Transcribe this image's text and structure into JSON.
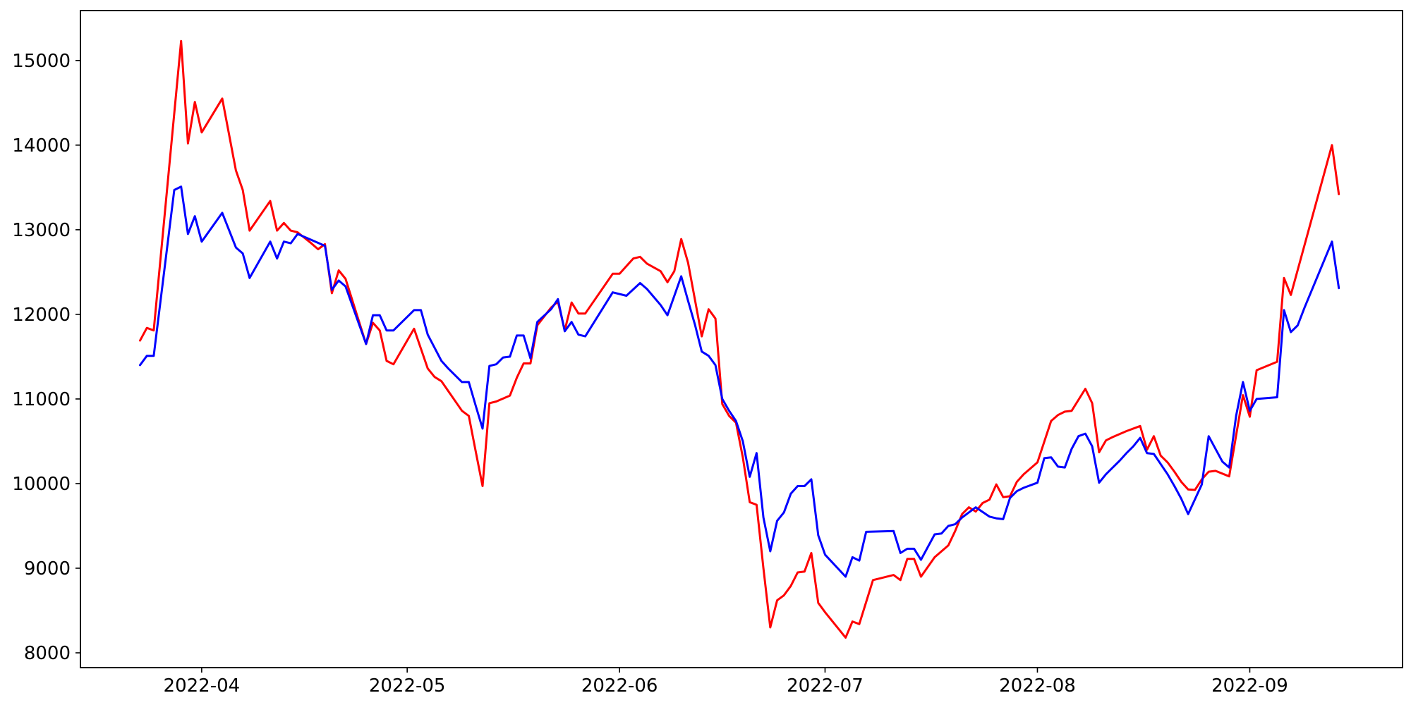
{
  "figure": {
    "background": "#ffffff",
    "description": "Two-series daily line chart, red and blue, March-September 2022"
  },
  "chart_data": {
    "type": "line",
    "title": "",
    "xlabel": "",
    "ylabel": "",
    "grid": false,
    "legend": "none",
    "axis": {
      "day_zero": "2022-03-23",
      "xlim_days": [
        -8.7,
        184.3
      ],
      "ylim": [
        7825,
        15590
      ],
      "x_ticks": [
        {
          "day": 9,
          "label": "2022-04"
        },
        {
          "day": 39,
          "label": "2022-05"
        },
        {
          "day": 70,
          "label": "2022-06"
        },
        {
          "day": 100,
          "label": "2022-07"
        },
        {
          "day": 131,
          "label": "2022-08"
        },
        {
          "day": 162,
          "label": "2022-09"
        }
      ],
      "y_ticks": [
        {
          "value": 8000,
          "label": "8000"
        },
        {
          "value": 9000,
          "label": "9000"
        },
        {
          "value": 10000,
          "label": "10000"
        },
        {
          "value": 11000,
          "label": "11000"
        },
        {
          "value": 12000,
          "label": "12000"
        },
        {
          "value": 13000,
          "label": "13000"
        },
        {
          "value": 14000,
          "label": "14000"
        },
        {
          "value": 15000,
          "label": "15000"
        }
      ]
    },
    "series": [
      {
        "name": "red-series",
        "color": "#ff0000",
        "line_width": 3,
        "points": [
          [
            0,
            11690
          ],
          [
            1,
            11840
          ],
          [
            2,
            11810
          ],
          [
            6,
            15230
          ],
          [
            7,
            14020
          ],
          [
            8,
            14510
          ],
          [
            9,
            14150
          ],
          [
            12,
            14550
          ],
          [
            14,
            13700
          ],
          [
            15,
            13470
          ],
          [
            16,
            12990
          ],
          [
            19,
            13340
          ],
          [
            20,
            12990
          ],
          [
            21,
            13080
          ],
          [
            22,
            12990
          ],
          [
            23,
            12970
          ],
          [
            25,
            12840
          ],
          [
            26,
            12770
          ],
          [
            27,
            12830
          ],
          [
            28,
            12250
          ],
          [
            29,
            12520
          ],
          [
            30,
            12420
          ],
          [
            33,
            11650
          ],
          [
            34,
            11900
          ],
          [
            35,
            11810
          ],
          [
            36,
            11450
          ],
          [
            37,
            11410
          ],
          [
            40,
            11830
          ],
          [
            42,
            11360
          ],
          [
            43,
            11260
          ],
          [
            44,
            11210
          ],
          [
            47,
            10860
          ],
          [
            48,
            10800
          ],
          [
            49,
            10380
          ],
          [
            50,
            9970
          ],
          [
            51,
            10950
          ],
          [
            52,
            10970
          ],
          [
            54,
            11040
          ],
          [
            55,
            11250
          ],
          [
            56,
            11420
          ],
          [
            57,
            11420
          ],
          [
            58,
            11870
          ],
          [
            60,
            12080
          ],
          [
            61,
            12150
          ],
          [
            62,
            11810
          ],
          [
            63,
            12140
          ],
          [
            64,
            12010
          ],
          [
            65,
            12010
          ],
          [
            69,
            12480
          ],
          [
            70,
            12480
          ],
          [
            72,
            12660
          ],
          [
            73,
            12680
          ],
          [
            74,
            12600
          ],
          [
            76,
            12510
          ],
          [
            77,
            12380
          ],
          [
            78,
            12510
          ],
          [
            79,
            12890
          ],
          [
            80,
            12610
          ],
          [
            82,
            11740
          ],
          [
            83,
            12060
          ],
          [
            84,
            11950
          ],
          [
            85,
            10940
          ],
          [
            86,
            10800
          ],
          [
            87,
            10720
          ],
          [
            88,
            10310
          ],
          [
            89,
            9780
          ],
          [
            90,
            9750
          ],
          [
            91,
            9000
          ],
          [
            92,
            8300
          ],
          [
            93,
            8620
          ],
          [
            94,
            8680
          ],
          [
            95,
            8790
          ],
          [
            96,
            8950
          ],
          [
            97,
            8960
          ],
          [
            98,
            9180
          ],
          [
            99,
            8590
          ],
          [
            100,
            8480
          ],
          [
            103,
            8180
          ],
          [
            104,
            8370
          ],
          [
            105,
            8340
          ],
          [
            106,
            8600
          ],
          [
            107,
            8860
          ],
          [
            108,
            8880
          ],
          [
            110,
            8920
          ],
          [
            111,
            8860
          ],
          [
            112,
            9110
          ],
          [
            113,
            9110
          ],
          [
            114,
            8900
          ],
          [
            116,
            9130
          ],
          [
            117,
            9200
          ],
          [
            118,
            9270
          ],
          [
            119,
            9440
          ],
          [
            120,
            9640
          ],
          [
            121,
            9720
          ],
          [
            122,
            9670
          ],
          [
            123,
            9770
          ],
          [
            124,
            9810
          ],
          [
            125,
            9990
          ],
          [
            126,
            9840
          ],
          [
            127,
            9850
          ],
          [
            128,
            10020
          ],
          [
            129,
            10110
          ],
          [
            131,
            10250
          ],
          [
            133,
            10740
          ],
          [
            134,
            10810
          ],
          [
            135,
            10850
          ],
          [
            136,
            10860
          ],
          [
            138,
            11120
          ],
          [
            139,
            10950
          ],
          [
            140,
            10370
          ],
          [
            141,
            10510
          ],
          [
            142,
            10550
          ],
          [
            144,
            10620
          ],
          [
            146,
            10680
          ],
          [
            147,
            10400
          ],
          [
            148,
            10560
          ],
          [
            149,
            10330
          ],
          [
            150,
            10250
          ],
          [
            151,
            10140
          ],
          [
            152,
            10020
          ],
          [
            153,
            9930
          ],
          [
            154,
            9925
          ],
          [
            155,
            10050
          ],
          [
            156,
            10140
          ],
          [
            157,
            10150
          ],
          [
            159,
            10085
          ],
          [
            161,
            11045
          ],
          [
            162,
            10790
          ],
          [
            163,
            11340
          ],
          [
            166,
            11440
          ],
          [
            167,
            12430
          ],
          [
            168,
            12230
          ],
          [
            174,
            14000
          ],
          [
            175,
            13420
          ]
        ]
      },
      {
        "name": "blue-series",
        "color": "#0000ff",
        "line_width": 3,
        "points": [
          [
            0,
            11400
          ],
          [
            1,
            11510
          ],
          [
            2,
            11510
          ],
          [
            5,
            13470
          ],
          [
            6,
            13510
          ],
          [
            7,
            12950
          ],
          [
            8,
            13160
          ],
          [
            9,
            12860
          ],
          [
            12,
            13200
          ],
          [
            14,
            12790
          ],
          [
            15,
            12720
          ],
          [
            16,
            12430
          ],
          [
            19,
            12860
          ],
          [
            20,
            12660
          ],
          [
            21,
            12860
          ],
          [
            22,
            12840
          ],
          [
            23,
            12950
          ],
          [
            25,
            12880
          ],
          [
            27,
            12810
          ],
          [
            28,
            12290
          ],
          [
            29,
            12400
          ],
          [
            30,
            12330
          ],
          [
            33,
            11650
          ],
          [
            34,
            11990
          ],
          [
            35,
            11990
          ],
          [
            36,
            11810
          ],
          [
            37,
            11810
          ],
          [
            40,
            12050
          ],
          [
            41,
            12050
          ],
          [
            42,
            11760
          ],
          [
            44,
            11450
          ],
          [
            45,
            11360
          ],
          [
            47,
            11200
          ],
          [
            48,
            11200
          ],
          [
            49,
            10920
          ],
          [
            50,
            10650
          ],
          [
            51,
            11390
          ],
          [
            52,
            11410
          ],
          [
            53,
            11490
          ],
          [
            54,
            11500
          ],
          [
            55,
            11750
          ],
          [
            56,
            11750
          ],
          [
            57,
            11480
          ],
          [
            58,
            11910
          ],
          [
            60,
            12060
          ],
          [
            61,
            12180
          ],
          [
            62,
            11800
          ],
          [
            63,
            11910
          ],
          [
            64,
            11760
          ],
          [
            65,
            11740
          ],
          [
            69,
            12260
          ],
          [
            71,
            12220
          ],
          [
            73,
            12370
          ],
          [
            74,
            12300
          ],
          [
            76,
            12110
          ],
          [
            77,
            11990
          ],
          [
            79,
            12450
          ],
          [
            80,
            12160
          ],
          [
            81,
            11880
          ],
          [
            82,
            11560
          ],
          [
            83,
            11510
          ],
          [
            84,
            11400
          ],
          [
            85,
            11000
          ],
          [
            86,
            10860
          ],
          [
            87,
            10740
          ],
          [
            88,
            10500
          ],
          [
            89,
            10080
          ],
          [
            90,
            10360
          ],
          [
            91,
            9600
          ],
          [
            92,
            9200
          ],
          [
            93,
            9560
          ],
          [
            94,
            9660
          ],
          [
            95,
            9880
          ],
          [
            96,
            9970
          ],
          [
            97,
            9970
          ],
          [
            98,
            10050
          ],
          [
            99,
            9390
          ],
          [
            100,
            9160
          ],
          [
            103,
            8900
          ],
          [
            104,
            9130
          ],
          [
            105,
            9090
          ],
          [
            106,
            9430
          ],
          [
            110,
            9440
          ],
          [
            111,
            9180
          ],
          [
            112,
            9230
          ],
          [
            113,
            9230
          ],
          [
            114,
            9100
          ],
          [
            116,
            9400
          ],
          [
            117,
            9410
          ],
          [
            118,
            9500
          ],
          [
            119,
            9520
          ],
          [
            120,
            9600
          ],
          [
            122,
            9720
          ],
          [
            124,
            9610
          ],
          [
            125,
            9590
          ],
          [
            126,
            9580
          ],
          [
            127,
            9830
          ],
          [
            128,
            9910
          ],
          [
            129,
            9950
          ],
          [
            131,
            10010
          ],
          [
            132,
            10300
          ],
          [
            133,
            10310
          ],
          [
            134,
            10200
          ],
          [
            135,
            10190
          ],
          [
            136,
            10410
          ],
          [
            137,
            10560
          ],
          [
            138,
            10590
          ],
          [
            139,
            10440
          ],
          [
            140,
            10010
          ],
          [
            141,
            10110
          ],
          [
            142,
            10190
          ],
          [
            143,
            10270
          ],
          [
            144,
            10360
          ],
          [
            145,
            10440
          ],
          [
            146,
            10540
          ],
          [
            147,
            10360
          ],
          [
            148,
            10350
          ],
          [
            150,
            10110
          ],
          [
            151,
            9970
          ],
          [
            152,
            9820
          ],
          [
            153,
            9640
          ],
          [
            155,
            9990
          ],
          [
            156,
            10560
          ],
          [
            158,
            10260
          ],
          [
            159,
            10190
          ],
          [
            160,
            10800
          ],
          [
            161,
            11200
          ],
          [
            162,
            10860
          ],
          [
            163,
            11000
          ],
          [
            166,
            11020
          ],
          [
            167,
            12050
          ],
          [
            168,
            11790
          ],
          [
            169,
            11870
          ],
          [
            170,
            12080
          ],
          [
            174,
            12860
          ],
          [
            175,
            12310
          ]
        ]
      }
    ]
  }
}
